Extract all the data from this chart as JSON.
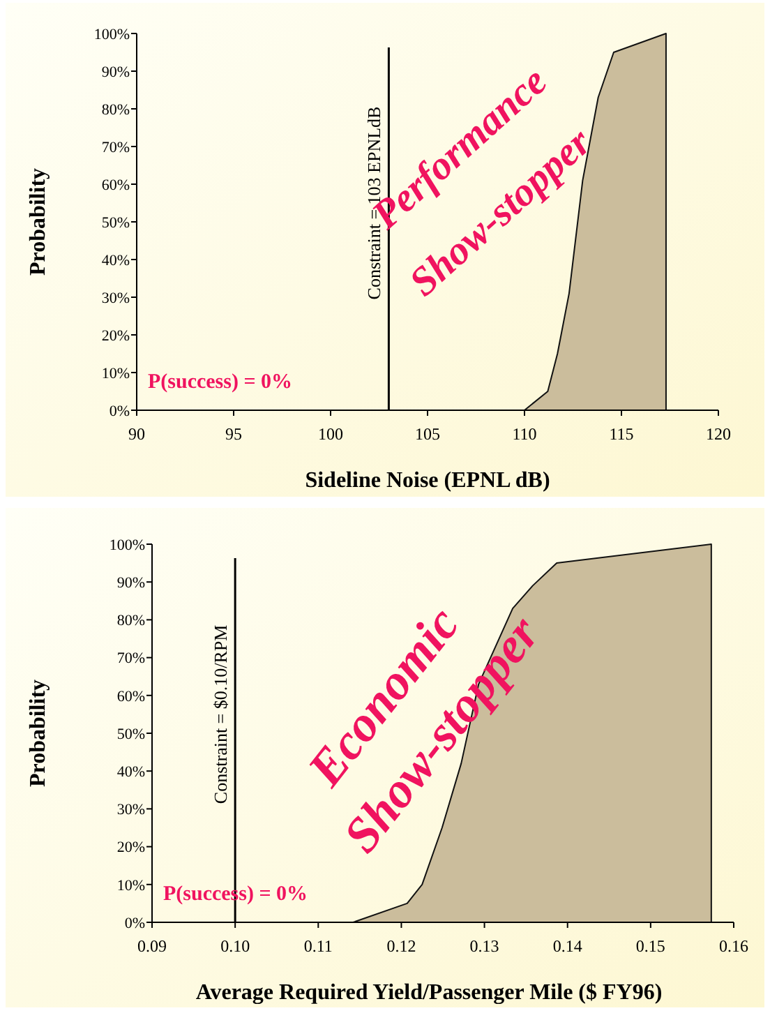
{
  "chart_data": [
    {
      "type": "area",
      "xlabel": "Sideline Noise (EPNL dB)",
      "ylabel": "Probability",
      "series": [
        {
          "color": "#cbbd9c",
          "x": [
            110.0,
            111.2,
            111.7,
            112.3,
            113.0,
            113.8,
            114.6,
            117.3
          ],
          "values": [
            0,
            5,
            15,
            31,
            61,
            83,
            95,
            100
          ]
        }
      ],
      "xlim": [
        90,
        120
      ],
      "xticks": [
        90,
        95,
        100,
        105,
        110,
        115,
        120
      ],
      "ylim": [
        0,
        100
      ],
      "yticks": [
        {
          "value": 0,
          "label": "0%"
        },
        {
          "value": 10,
          "label": "10%"
        },
        {
          "value": 20,
          "label": "20%"
        },
        {
          "value": 30,
          "label": "30%"
        },
        {
          "value": 40,
          "label": "40%"
        },
        {
          "value": 50,
          "label": "50%"
        },
        {
          "value": 60,
          "label": "60%"
        },
        {
          "value": 70,
          "label": "70%"
        },
        {
          "value": 80,
          "label": "80%"
        },
        {
          "value": 90,
          "label": "90%"
        },
        {
          "value": 100,
          "label": "100%"
        }
      ],
      "ref_lines": [
        {
          "axis": "x",
          "value": 103,
          "label": "Constraint = 103 EPNLdB",
          "color": "#000000"
        }
      ],
      "annotations": [
        "P(success) = 0%",
        "Performance",
        "Show-stopper"
      ],
      "grid": false
    },
    {
      "type": "area",
      "xlabel": "Average Required Yield/Passenger Mile ($ FY96)",
      "ylabel": "Probability",
      "series": [
        {
          "color": "#cbbd9c",
          "x": [
            0.1142,
            0.1207,
            0.1225,
            0.1249,
            0.1272,
            0.1293,
            0.1334,
            0.1358,
            0.1387,
            0.1573
          ],
          "values": [
            0,
            5,
            10,
            25,
            42,
            63,
            83,
            89,
            95,
            100
          ]
        }
      ],
      "xlim": [
        0.09,
        0.16
      ],
      "xticks": [
        {
          "value": 0.09,
          "label": "0.09"
        },
        {
          "value": 0.1,
          "label": "0.10"
        },
        {
          "value": 0.11,
          "label": "0.11"
        },
        {
          "value": 0.12,
          "label": "0.12"
        },
        {
          "value": 0.13,
          "label": "0.13"
        },
        {
          "value": 0.14,
          "label": "0.14"
        },
        {
          "value": 0.15,
          "label": "0.15"
        },
        {
          "value": 0.16,
          "label": "0.16"
        }
      ],
      "ylim": [
        0,
        100
      ],
      "yticks": [
        {
          "value": 0,
          "label": "0%"
        },
        {
          "value": 10,
          "label": "10%"
        },
        {
          "value": 20,
          "label": "20%"
        },
        {
          "value": 30,
          "label": "30%"
        },
        {
          "value": 40,
          "label": "40%"
        },
        {
          "value": 50,
          "label": "50%"
        },
        {
          "value": 60,
          "label": "60%"
        },
        {
          "value": 70,
          "label": "70%"
        },
        {
          "value": 80,
          "label": "80%"
        },
        {
          "value": 90,
          "label": "90%"
        },
        {
          "value": 100,
          "label": "100%"
        }
      ],
      "ref_lines": [
        {
          "axis": "x",
          "value": 0.1,
          "label": "Constraint = $0.10/RPM",
          "color": "#000000"
        }
      ],
      "annotations": [
        "P(success) = 0%",
        "Economic",
        "Show-stopper"
      ],
      "grid": false
    }
  ]
}
